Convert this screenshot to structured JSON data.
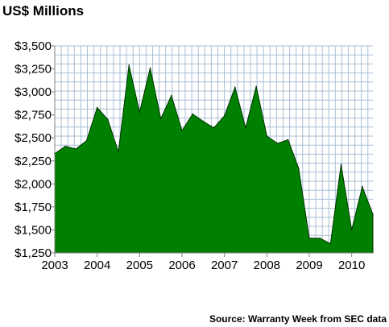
{
  "chart_data": {
    "type": "area",
    "title": "US$ Millions",
    "source": "Source: Warranty Week from SEC data",
    "ylim": [
      1250,
      3500
    ],
    "grid": true,
    "y_tick_labels": [
      "$3,500",
      "$3,250",
      "$3,000",
      "$2,750",
      "$2,500",
      "$2,250",
      "$2,000",
      "$1,750",
      "$1,500",
      "$1,250"
    ],
    "y_tick_values": [
      3500,
      3250,
      3000,
      2750,
      2500,
      2250,
      2000,
      1750,
      1500,
      1250
    ],
    "x_tick_labels": [
      "2003",
      "2004",
      "2005",
      "2006",
      "2007",
      "2008",
      "2009",
      "2010"
    ],
    "x_tick_values": [
      2003,
      2004,
      2005,
      2006,
      2007,
      2008,
      2009,
      2010
    ],
    "series": [
      {
        "color": "#008000",
        "x": [
          2003.0,
          2003.25,
          2003.5,
          2003.75,
          2004.0,
          2004.25,
          2004.5,
          2004.75,
          2005.0,
          2005.25,
          2005.5,
          2005.75,
          2006.0,
          2006.25,
          2006.5,
          2006.75,
          2007.0,
          2007.25,
          2007.5,
          2007.75,
          2008.0,
          2008.25,
          2008.5,
          2008.75,
          2009.0,
          2009.25,
          2009.5,
          2009.75,
          2010.0,
          2010.25,
          2010.5
        ],
        "values": [
          2330,
          2410,
          2380,
          2470,
          2830,
          2700,
          2350,
          3290,
          2780,
          3260,
          2710,
          2960,
          2580,
          2760,
          2680,
          2610,
          2740,
          3050,
          2610,
          3060,
          2520,
          2440,
          2480,
          2170,
          1410,
          1410,
          1350,
          2210,
          1500,
          1970,
          1670
        ]
      }
    ]
  }
}
